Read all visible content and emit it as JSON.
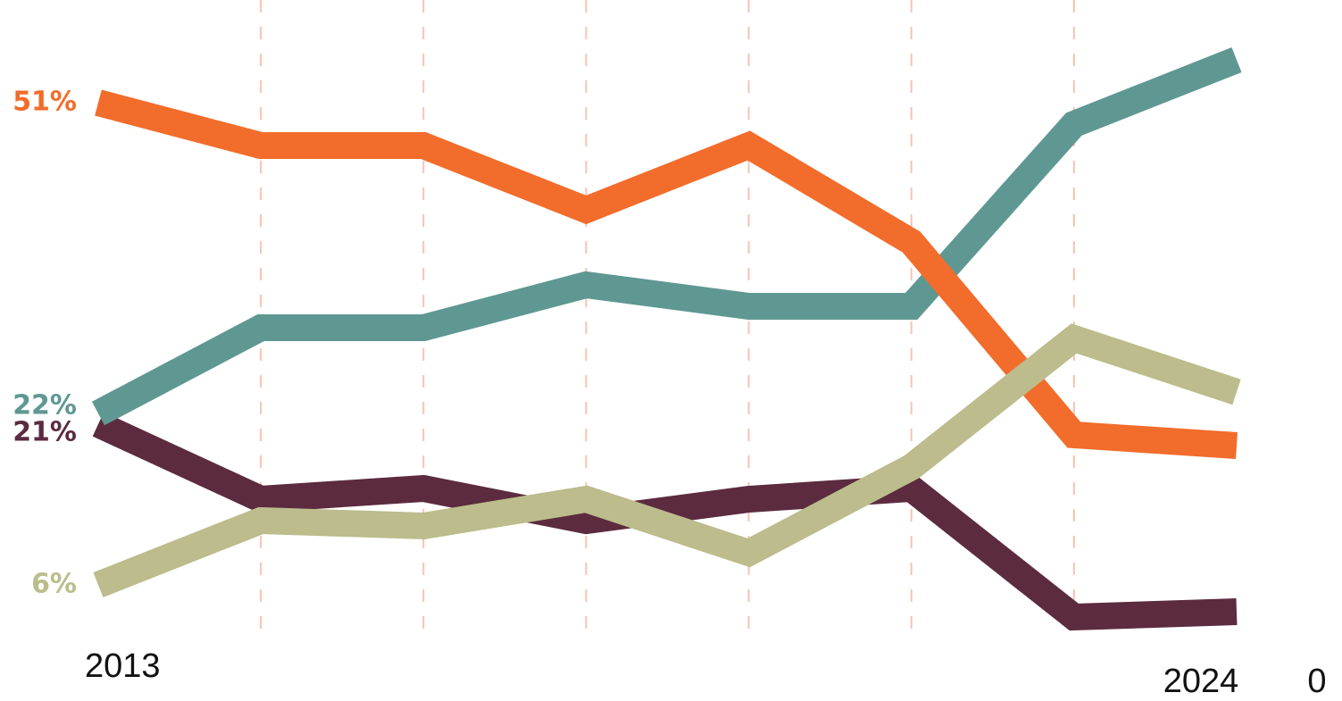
{
  "chart_data": {
    "type": "line",
    "categories": [
      "2013",
      null,
      null,
      null,
      null,
      null,
      null,
      "2024"
    ],
    "ylim": [
      0,
      55
    ],
    "yticks": [
      0
    ],
    "series": [
      {
        "name": "purple",
        "label": "21%",
        "color": "#5c2b40",
        "values": [
          21,
          14,
          15,
          12,
          14,
          15,
          3,
          3.5
        ]
      },
      {
        "name": "teal",
        "label": "22%",
        "color": "#5f9892",
        "values": [
          22,
          30,
          30,
          34,
          32,
          32,
          49,
          55
        ]
      },
      {
        "name": "orange",
        "label": "51%",
        "color": "#f26c2b",
        "values": [
          51,
          47,
          47,
          41,
          47,
          38,
          20,
          19
        ]
      },
      {
        "name": "khaki",
        "label": "6%",
        "color": "#bcbc8c",
        "values": [
          6,
          12,
          11.5,
          14,
          9,
          17,
          29,
          24
        ]
      }
    ]
  }
}
